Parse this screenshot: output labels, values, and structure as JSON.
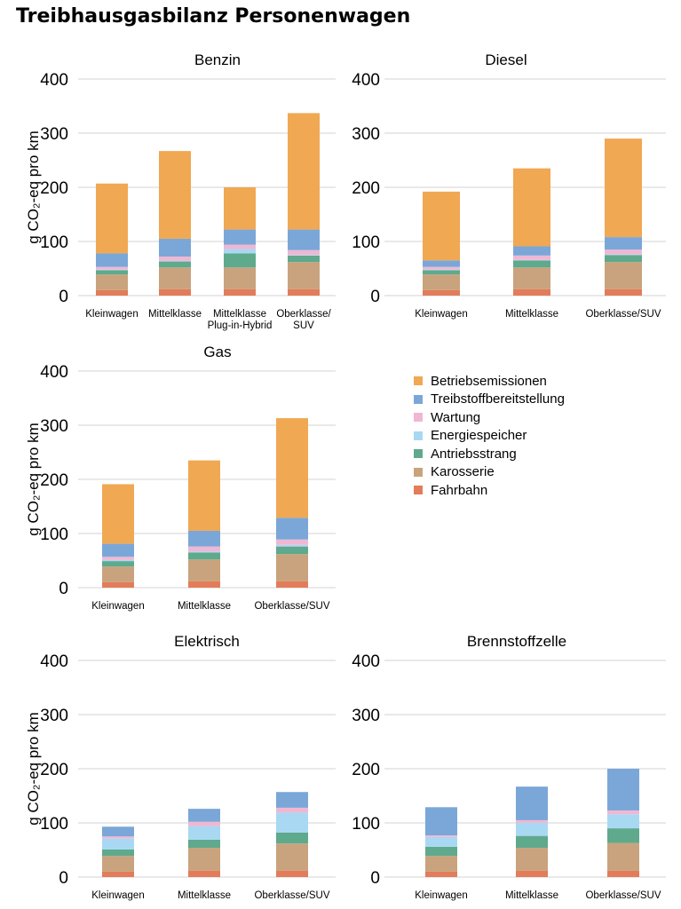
{
  "title": "Treibhausgasbilanz Personenwagen",
  "colors": {
    "Betriebsemissionen": "#f0a853",
    "Treibstoffbereitstellung": "#7aa7d8",
    "Wartung": "#f0b7d3",
    "Energiespeicher": "#a9d8f3",
    "Antriebsstrang": "#5fa98d",
    "Karosserie": "#c9a37d",
    "Fahrbahn": "#e27c5a",
    "gridline": "#d3d3d3"
  },
  "legend": {
    "items": [
      {
        "label": "Betriebsemissionen",
        "color": "#f0a853"
      },
      {
        "label": "Treibstoffbereitstellung",
        "color": "#7aa7d8"
      },
      {
        "label": "Wartung",
        "color": "#f0b7d3"
      },
      {
        "label": "Energiespeicher",
        "color": "#a9d8f3"
      },
      {
        "label": "Antriebsstrang",
        "color": "#5fa98d"
      },
      {
        "label": "Karosserie",
        "color": "#c9a37d"
      },
      {
        "label": "Fahrbahn",
        "color": "#e27c5a"
      }
    ]
  },
  "chart_data": [
    {
      "type": "bar",
      "stacked": true,
      "title": "Benzin",
      "ylabel": "g CO₂-eq pro km",
      "ylim": [
        0,
        400
      ],
      "yticks": [
        0,
        100,
        200,
        300,
        400
      ],
      "grid": true,
      "categories": [
        [
          "Kleinwagen"
        ],
        [
          "Mittelklasse"
        ],
        [
          "Mittelklasse",
          "Plug-in-Hybrid"
        ],
        [
          "Oberklasse/",
          "SUV"
        ]
      ],
      "series": [
        {
          "name": "Fahrbahn",
          "values": [
            10,
            12,
            12,
            12
          ]
        },
        {
          "name": "Karosserie",
          "values": [
            29,
            40,
            40,
            50
          ]
        },
        {
          "name": "Antriebsstrang",
          "values": [
            8,
            11,
            26,
            12
          ]
        },
        {
          "name": "Energiespeicher",
          "values": [
            1,
            1,
            8,
            1
          ]
        },
        {
          "name": "Wartung",
          "values": [
            5,
            8,
            8,
            9
          ]
        },
        {
          "name": "Treibstoffbereitstellung",
          "values": [
            25,
            33,
            28,
            38
          ]
        },
        {
          "name": "Betriebsemissionen",
          "values": [
            129,
            162,
            78,
            215
          ]
        }
      ]
    },
    {
      "type": "bar",
      "stacked": true,
      "title": "Diesel",
      "ylabel": "",
      "ylim": [
        0,
        400
      ],
      "yticks": [
        0,
        100,
        200,
        300,
        400
      ],
      "grid": true,
      "categories": [
        [
          "Kleinwagen"
        ],
        [
          "Mittelklasse"
        ],
        [
          "Oberklasse/SUV"
        ]
      ],
      "series": [
        {
          "name": "Fahrbahn",
          "values": [
            10,
            12,
            12
          ]
        },
        {
          "name": "Karosserie",
          "values": [
            29,
            40,
            50
          ]
        },
        {
          "name": "Antriebsstrang",
          "values": [
            8,
            13,
            13
          ]
        },
        {
          "name": "Energiespeicher",
          "values": [
            1,
            1,
            1
          ]
        },
        {
          "name": "Wartung",
          "values": [
            5,
            8,
            9
          ]
        },
        {
          "name": "Treibstoffbereitstellung",
          "values": [
            12,
            17,
            23
          ]
        },
        {
          "name": "Betriebsemissionen",
          "values": [
            127,
            144,
            182
          ]
        }
      ]
    },
    {
      "type": "bar",
      "stacked": true,
      "title": "Gas",
      "ylabel": "g CO₂-eq pro km",
      "ylim": [
        0,
        400
      ],
      "yticks": [
        0,
        100,
        200,
        300,
        400
      ],
      "grid": true,
      "categories": [
        [
          "Kleinwagen"
        ],
        [
          "Mittelklasse"
        ],
        [
          "Oberklasse/SUV"
        ]
      ],
      "series": [
        {
          "name": "Fahrbahn",
          "values": [
            10,
            12,
            12
          ]
        },
        {
          "name": "Karosserie",
          "values": [
            29,
            40,
            50
          ]
        },
        {
          "name": "Antriebsstrang",
          "values": [
            10,
            13,
            14
          ]
        },
        {
          "name": "Energiespeicher",
          "values": [
            2,
            2,
            3
          ]
        },
        {
          "name": "Wartung",
          "values": [
            6,
            9,
            10
          ]
        },
        {
          "name": "Treibstoffbereitstellung",
          "values": [
            24,
            29,
            40
          ]
        },
        {
          "name": "Betriebsemissionen",
          "values": [
            110,
            130,
            184
          ]
        }
      ]
    },
    {
      "type": "bar",
      "stacked": true,
      "title": "Elektrisch",
      "ylabel": "g CO₂-eq pro km",
      "ylim": [
        0,
        400
      ],
      "yticks": [
        0,
        100,
        200,
        300,
        400
      ],
      "grid": true,
      "categories": [
        [
          "Kleinwagen"
        ],
        [
          "Mittelklasse"
        ],
        [
          "Oberklasse/SUV"
        ]
      ],
      "series": [
        {
          "name": "Fahrbahn",
          "values": [
            10,
            12,
            12
          ]
        },
        {
          "name": "Karosserie",
          "values": [
            29,
            42,
            50
          ]
        },
        {
          "name": "Antriebsstrang",
          "values": [
            12,
            15,
            20
          ]
        },
        {
          "name": "Energiespeicher",
          "values": [
            20,
            25,
            37
          ]
        },
        {
          "name": "Wartung",
          "values": [
            4,
            8,
            9
          ]
        },
        {
          "name": "Treibstoffbereitstellung",
          "values": [
            18,
            24,
            29
          ]
        },
        {
          "name": "Betriebsemissionen",
          "values": [
            0,
            0,
            0
          ]
        }
      ]
    },
    {
      "type": "bar",
      "stacked": true,
      "title": "Brennstoffzelle",
      "ylabel": "",
      "ylim": [
        0,
        400
      ],
      "yticks": [
        0,
        100,
        200,
        300,
        400
      ],
      "grid": true,
      "categories": [
        [
          "Kleinwagen"
        ],
        [
          "Mittelklasse"
        ],
        [
          "Oberklasse/SUV"
        ]
      ],
      "series": [
        {
          "name": "Fahrbahn",
          "values": [
            10,
            12,
            12
          ]
        },
        {
          "name": "Karosserie",
          "values": [
            29,
            42,
            51
          ]
        },
        {
          "name": "Antriebsstrang",
          "values": [
            17,
            22,
            27
          ]
        },
        {
          "name": "Energiespeicher",
          "values": [
            18,
            24,
            26
          ]
        },
        {
          "name": "Wartung",
          "values": [
            3,
            5,
            7
          ]
        },
        {
          "name": "Treibstoffbereitstellung",
          "values": [
            52,
            62,
            77
          ]
        },
        {
          "name": "Betriebsemissionen",
          "values": [
            0,
            0,
            0
          ]
        }
      ]
    }
  ]
}
